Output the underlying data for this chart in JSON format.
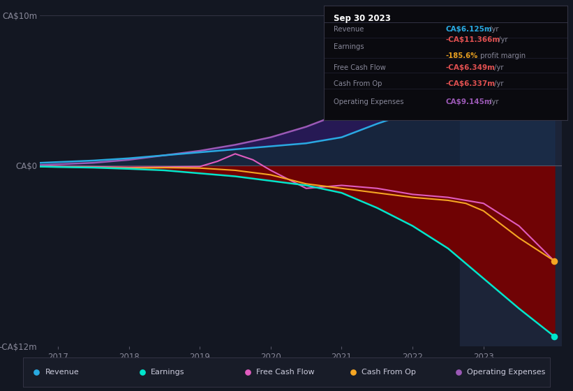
{
  "bg_color": "#131722",
  "title_box_text": "Sep 30 2023",
  "ylim": [
    -12,
    10
  ],
  "xlim": [
    2016.75,
    2024.1
  ],
  "ylabel_top": "CA$10m",
  "ylabel_zero": "CA$0",
  "ylabel_bottom": "-CA$12m",
  "xticks": [
    2017,
    2018,
    2019,
    2020,
    2021,
    2022,
    2023
  ],
  "highlight_x_start": 2022.67,
  "legend": [
    {
      "label": "Revenue",
      "color": "#29aae1"
    },
    {
      "label": "Earnings",
      "color": "#00e5cc"
    },
    {
      "label": "Free Cash Flow",
      "color": "#e05cbf"
    },
    {
      "label": "Cash From Op",
      "color": "#f5a623"
    },
    {
      "label": "Operating Expenses",
      "color": "#9b59b6"
    }
  ],
  "revenue_x": [
    2016.75,
    2017.0,
    2017.5,
    2018.0,
    2018.5,
    2019.0,
    2019.5,
    2020.0,
    2020.5,
    2021.0,
    2021.5,
    2022.0,
    2022.5,
    2023.0,
    2023.5,
    2024.0
  ],
  "revenue_y": [
    0.2,
    0.25,
    0.35,
    0.5,
    0.7,
    0.9,
    1.1,
    1.3,
    1.5,
    1.9,
    2.8,
    3.6,
    4.5,
    5.2,
    5.9,
    6.125
  ],
  "earnings_x": [
    2016.75,
    2017.0,
    2017.5,
    2018.0,
    2018.5,
    2019.0,
    2019.5,
    2020.0,
    2020.5,
    2021.0,
    2021.5,
    2022.0,
    2022.5,
    2023.0,
    2023.5,
    2024.0
  ],
  "earnings_y": [
    -0.05,
    -0.08,
    -0.12,
    -0.2,
    -0.3,
    -0.5,
    -0.7,
    -1.0,
    -1.3,
    -1.8,
    -2.8,
    -4.0,
    -5.5,
    -7.5,
    -9.5,
    -11.366
  ],
  "fcf_x": [
    2016.75,
    2017.0,
    2017.5,
    2018.0,
    2018.5,
    2019.0,
    2019.25,
    2019.5,
    2019.75,
    2020.0,
    2020.25,
    2020.5,
    2020.75,
    2021.0,
    2021.5,
    2022.0,
    2022.5,
    2023.0,
    2023.5,
    2024.0
  ],
  "fcf_y": [
    -0.02,
    -0.03,
    -0.06,
    -0.1,
    -0.08,
    -0.05,
    0.3,
    0.8,
    0.4,
    -0.3,
    -0.9,
    -1.5,
    -1.4,
    -1.3,
    -1.5,
    -1.9,
    -2.1,
    -2.5,
    -4.0,
    -6.349
  ],
  "cfo_x": [
    2016.75,
    2017.0,
    2017.5,
    2018.0,
    2018.5,
    2019.0,
    2019.5,
    2020.0,
    2020.5,
    2021.0,
    2021.5,
    2022.0,
    2022.5,
    2022.75,
    2023.0,
    2023.5,
    2024.0
  ],
  "cfo_y": [
    -0.05,
    -0.06,
    -0.1,
    -0.15,
    -0.12,
    -0.15,
    -0.3,
    -0.6,
    -1.2,
    -1.5,
    -1.8,
    -2.1,
    -2.3,
    -2.5,
    -3.0,
    -4.8,
    -6.337
  ],
  "opex_x": [
    2016.75,
    2017.0,
    2017.5,
    2018.0,
    2018.5,
    2019.0,
    2019.5,
    2020.0,
    2020.5,
    2021.0,
    2021.5,
    2022.0,
    2022.5,
    2023.0,
    2023.5,
    2024.0
  ],
  "opex_y": [
    0.05,
    0.1,
    0.2,
    0.4,
    0.7,
    1.0,
    1.4,
    1.9,
    2.6,
    3.5,
    4.6,
    5.6,
    6.5,
    7.4,
    8.3,
    9.145
  ]
}
